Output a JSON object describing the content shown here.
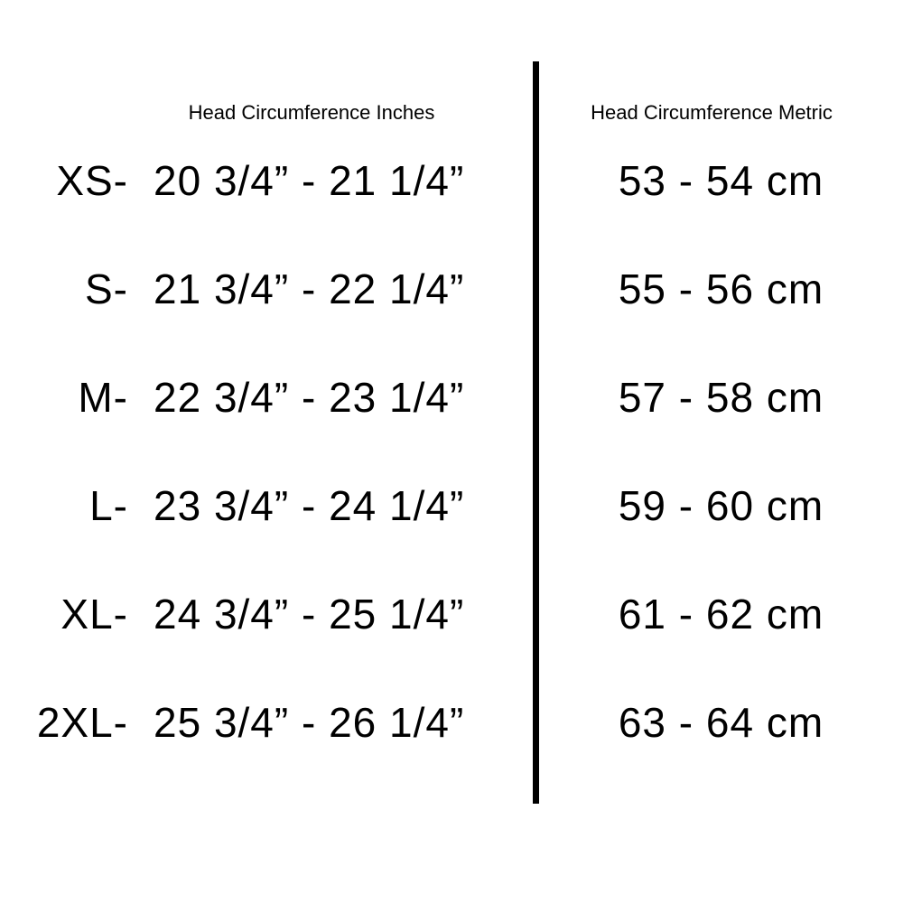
{
  "colors": {
    "background": "#ffffff",
    "text": "#000000",
    "divider": "#000000"
  },
  "chart_data": {
    "type": "table",
    "column_headers": [
      "Head Circumference Inches",
      "Head Circumference Metric"
    ],
    "row_labels": [
      "XS-",
      "S-",
      "M-",
      "L-",
      "XL-",
      "2XL-"
    ],
    "rows": [
      [
        "20 3/4” - 21 1/4”",
        "53 - 54 cm"
      ],
      [
        "21 3/4” - 22 1/4”",
        "55 - 56 cm"
      ],
      [
        "22 3/4” - 23 1/4”",
        "57 - 58 cm"
      ],
      [
        "23 3/4” - 24 1/4”",
        "59 - 60 cm"
      ],
      [
        "24 3/4” - 25 1/4”",
        "61 - 62 cm"
      ],
      [
        "25 3/4” - 26 1/4”",
        "63 - 64 cm"
      ]
    ]
  }
}
